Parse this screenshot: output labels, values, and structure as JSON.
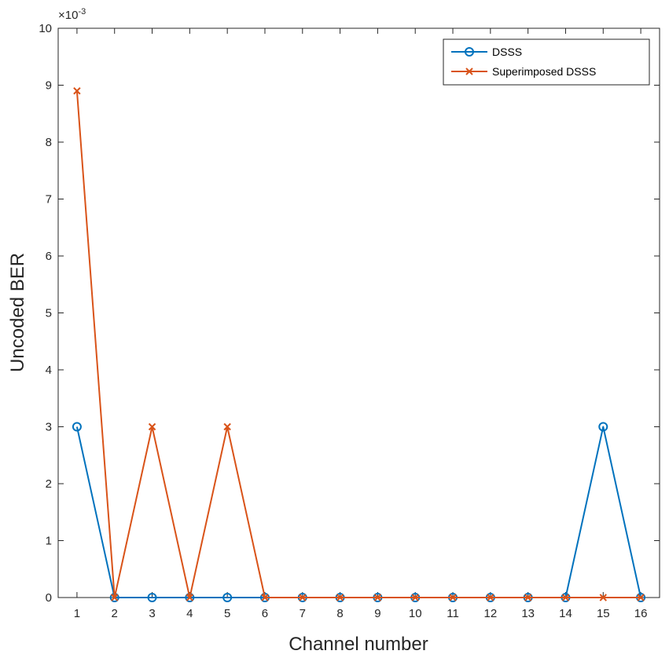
{
  "chart_data": {
    "type": "line",
    "title": "",
    "xlabel": "Channel number",
    "ylabel": "Uncoded BER",
    "y_exponent_label": "×10",
    "y_exponent_power": "-3",
    "x": [
      1,
      2,
      3,
      4,
      5,
      6,
      7,
      8,
      9,
      10,
      11,
      12,
      13,
      14,
      15,
      16
    ],
    "xlim": [
      0.5,
      16.5
    ],
    "ylim": [
      0,
      10
    ],
    "y_ticks": [
      0,
      1,
      2,
      3,
      4,
      5,
      6,
      7,
      8,
      9,
      10
    ],
    "grid": false,
    "legend_position": "top-right",
    "series": [
      {
        "name": "DSSS",
        "marker": "circle",
        "color": "#0072BD",
        "values": [
          3,
          0,
          0,
          0,
          0,
          0,
          0,
          0,
          0,
          0,
          0,
          0,
          0,
          0,
          3,
          0
        ]
      },
      {
        "name": "Superimposed DSSS",
        "marker": "x",
        "color": "#D95319",
        "values": [
          8.9,
          0,
          3,
          0,
          3,
          0,
          0,
          0,
          0,
          0,
          0,
          0,
          0,
          0,
          0,
          0
        ]
      }
    ]
  }
}
